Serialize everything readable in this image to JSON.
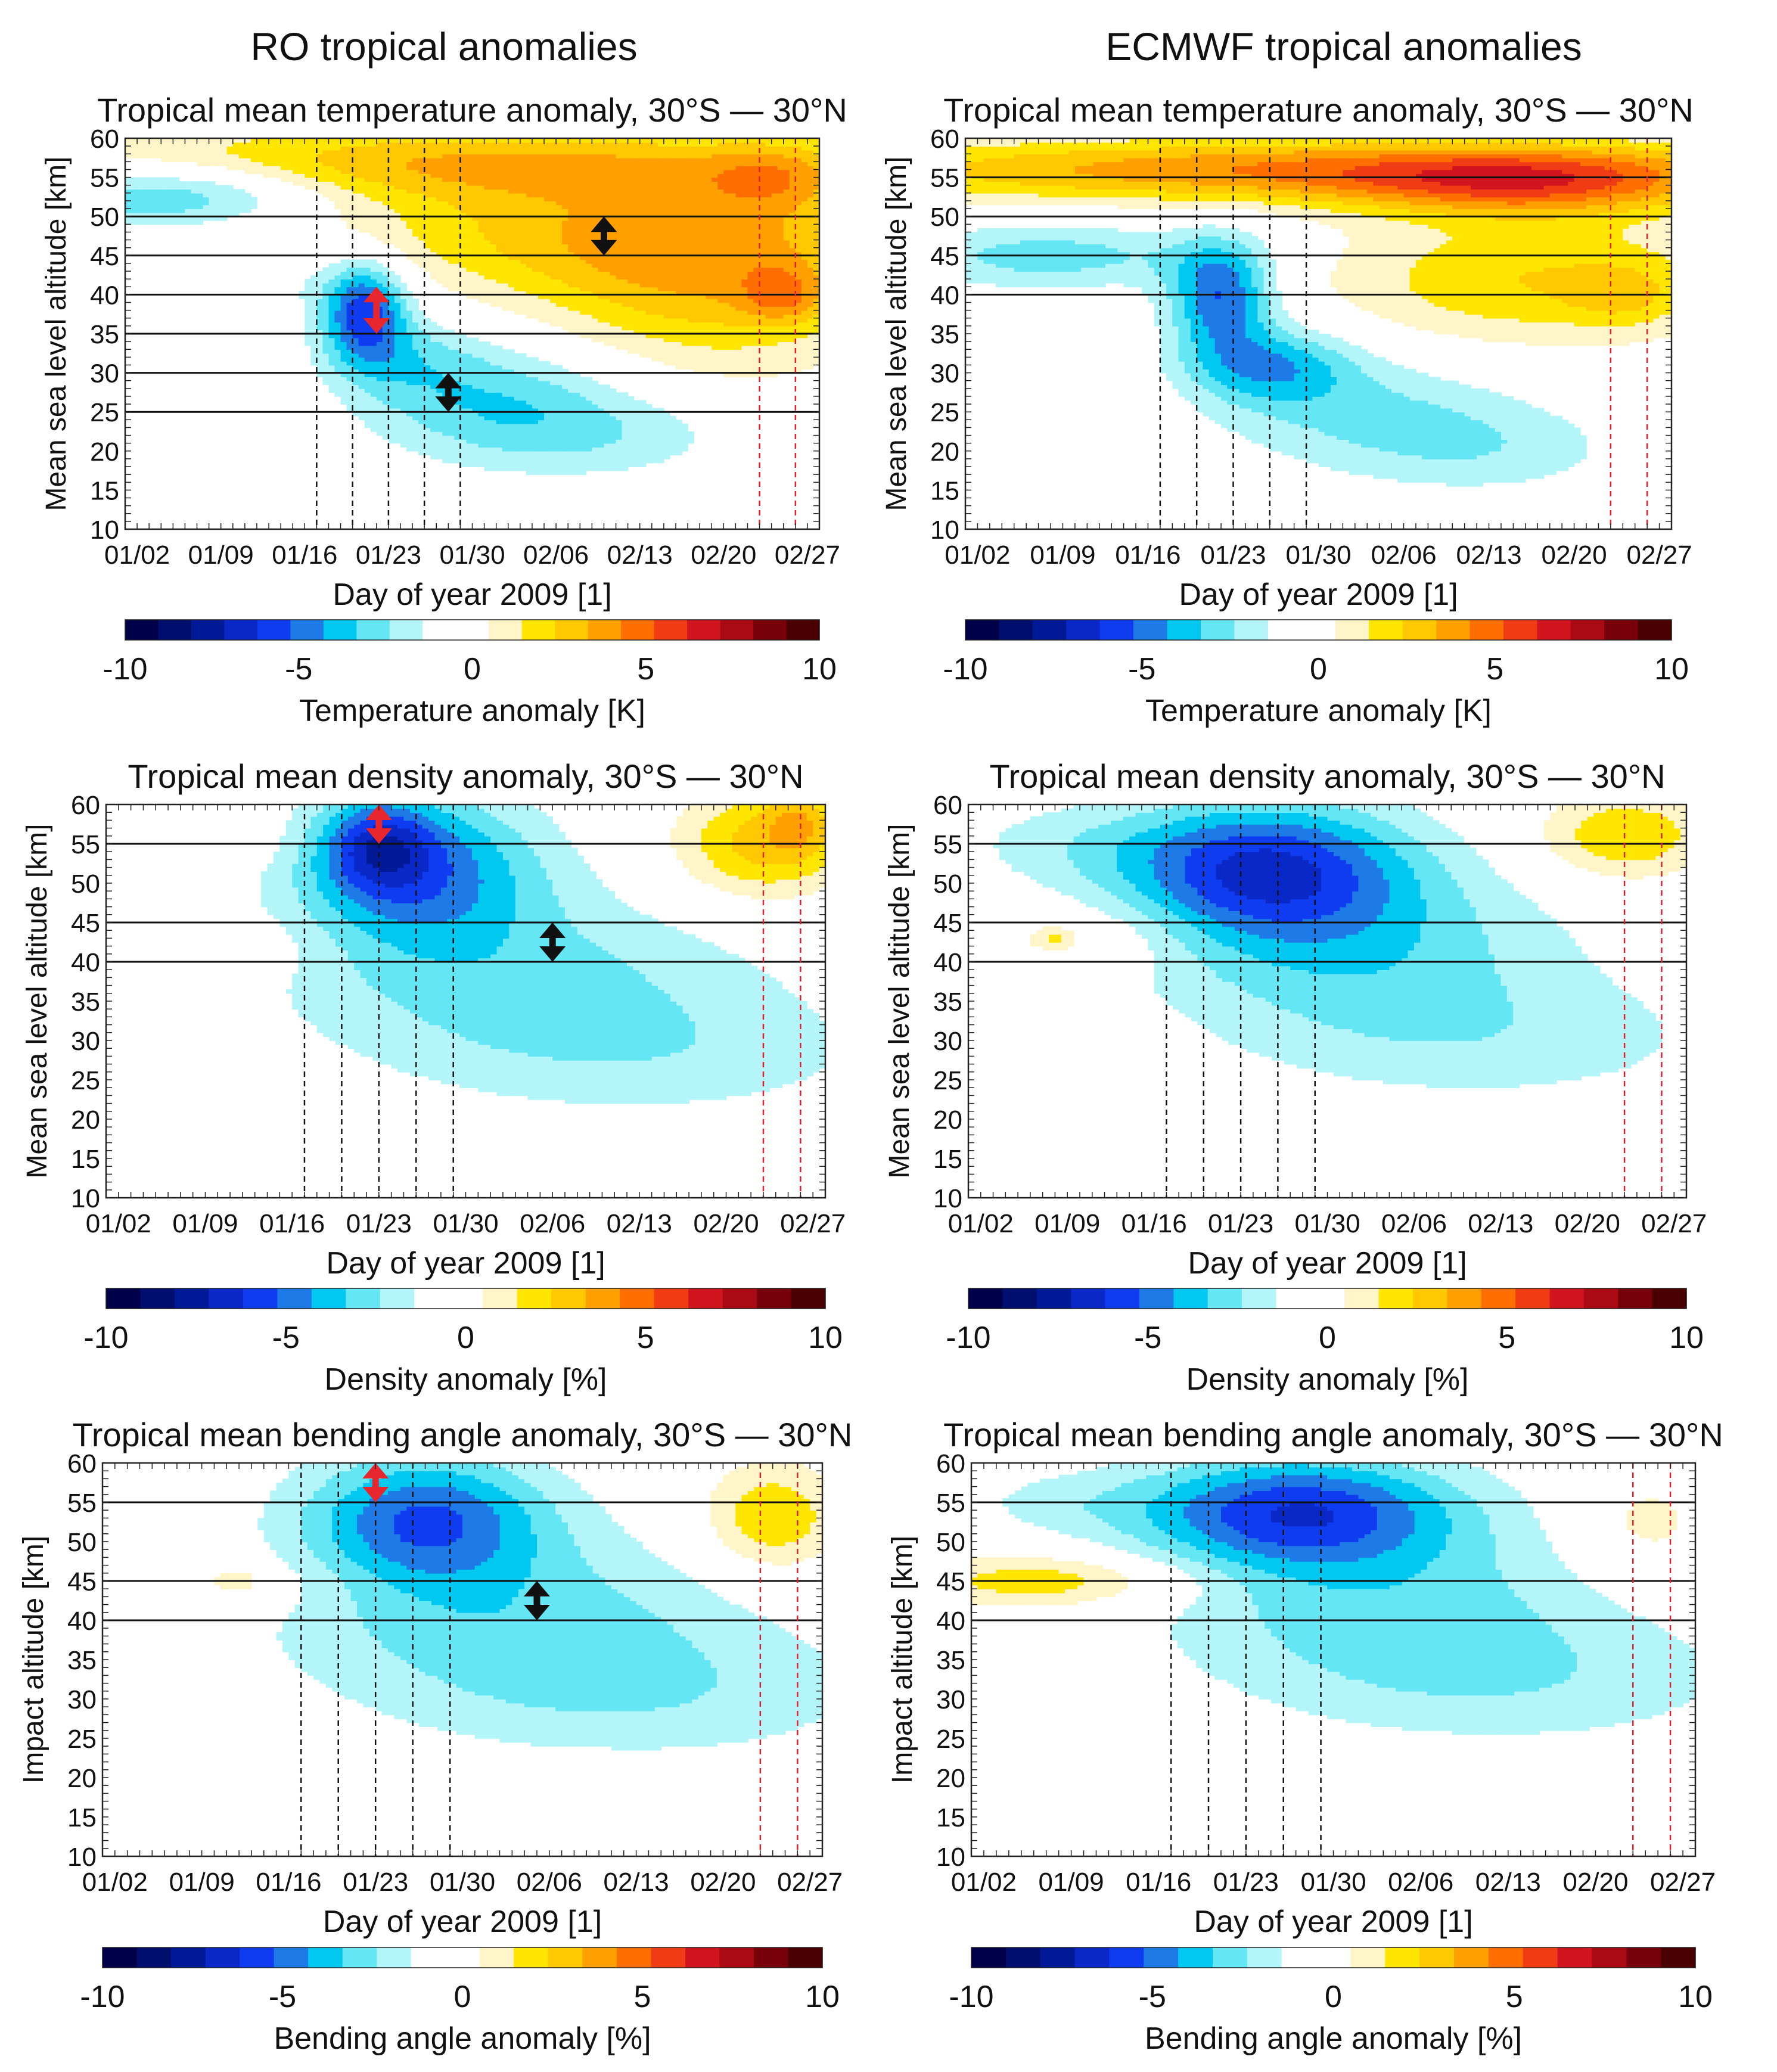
{
  "figure": {
    "column_titles": [
      "RO tropical anomalies",
      "ECMWF tropical anomalies"
    ]
  },
  "palette": [
    "#00004a",
    "#000e6e",
    "#001996",
    "#0a28c8",
    "#0f3cf0",
    "#1e7ae6",
    "#00c8f0",
    "#64e6f5",
    "#b4f5fa",
    "#ffffff",
    "#ffffff",
    "#fff5c8",
    "#ffe600",
    "#ffc800",
    "#ffa000",
    "#ff6e00",
    "#f03c14",
    "#d2141e",
    "#aa0a14",
    "#78000a",
    "#4a0000"
  ],
  "chart_data": [
    {
      "type": "heatmap",
      "id": "ro-temperature",
      "title": "Tropical mean temperature anomaly, 30°S — 30°N",
      "xlabel": "Day of year 2009 [1]",
      "ylabel": "Mean sea level altitude [km]",
      "xticks": [
        "01/02",
        "01/09",
        "01/16",
        "01/23",
        "01/30",
        "02/06",
        "02/13",
        "02/20",
        "02/27"
      ],
      "yticks": [
        10,
        15,
        20,
        25,
        30,
        35,
        40,
        45,
        50,
        55,
        60
      ],
      "xlim": [
        1,
        59
      ],
      "ylim": [
        10,
        60
      ],
      "colorbar": {
        "label": "Temperature anomaly [K]",
        "ticks": [
          -10,
          -5,
          0,
          5,
          10
        ],
        "range": [
          -10,
          10
        ]
      },
      "hlines_km": [
        25,
        30,
        35,
        40,
        45,
        50
      ],
      "vlines_black_day": [
        17,
        20,
        23,
        26,
        29
      ],
      "vlines_red_day": [
        54,
        57
      ],
      "arrows": [
        {
          "color": "red",
          "x": 22,
          "y1": 35,
          "y2": 41
        },
        {
          "color": "black",
          "x": 28,
          "y1": 25,
          "y2": 30
        },
        {
          "color": "black",
          "x": 41,
          "y1": 45,
          "y2": 50
        }
      ],
      "features": [
        {
          "x": 28,
          "y": 57,
          "sx": 26,
          "sy": 3.5,
          "v": 3.5
        },
        {
          "x": 42,
          "y": 48,
          "sx": 18,
          "sy": 6,
          "v": 3.2
        },
        {
          "x": 50,
          "y": 40,
          "sx": 10,
          "sy": 8,
          "v": 2.8
        },
        {
          "x": 55,
          "y": 55,
          "sx": 4,
          "sy": 3,
          "v": 2
        },
        {
          "x": 56,
          "y": 40,
          "sx": 2.5,
          "sy": 2.5,
          "v": 2.5
        },
        {
          "x": 5,
          "y": 53,
          "sx": 9,
          "sy": 3,
          "v": -3.8
        },
        {
          "x": 24,
          "y": 32,
          "sx": 5,
          "sy": 4,
          "v": -1.8
        },
        {
          "x": 21,
          "y": 38,
          "sx": 2.5,
          "sy": 4.5,
          "v": -5.5
        },
        {
          "x": 32,
          "y": 27,
          "sx": 8,
          "sy": 5,
          "v": -2.5
        },
        {
          "x": 40,
          "y": 22,
          "sx": 9,
          "sy": 4,
          "v": -1.6
        },
        {
          "x": 10,
          "y": 42,
          "sx": 9,
          "sy": 3,
          "v": -1.3
        },
        {
          "x": 6,
          "y": 28,
          "sx": 9,
          "sy": 4,
          "v": 0.8
        }
      ]
    },
    {
      "type": "heatmap",
      "id": "ecmwf-temperature",
      "title": "Tropical mean temperature anomaly, 30°S — 30°N",
      "xlabel": "Day of year 2009 [1]",
      "ylabel": "Mean sea level altitude [km]",
      "xticks": [
        "01/02",
        "01/09",
        "01/16",
        "01/23",
        "01/30",
        "02/06",
        "02/13",
        "02/20",
        "02/27"
      ],
      "yticks": [
        10,
        15,
        20,
        25,
        30,
        35,
        40,
        45,
        50,
        55,
        60
      ],
      "xlim": [
        1,
        59
      ],
      "ylim": [
        10,
        60
      ],
      "colorbar": {
        "label": "Temperature anomaly [K]",
        "ticks": [
          -10,
          -5,
          0,
          5,
          10
        ],
        "range": [
          -10,
          10
        ]
      },
      "hlines_km": [
        40,
        45,
        50,
        55
      ],
      "vlines_black_day": [
        17,
        20,
        23,
        26,
        29
      ],
      "vlines_red_day": [
        54,
        57
      ],
      "arrows": [],
      "features": [
        {
          "x": 30,
          "y": 56,
          "sx": 30,
          "sy": 3,
          "v": 5
        },
        {
          "x": 47,
          "y": 54,
          "sx": 10,
          "sy": 3,
          "v": 3.5
        },
        {
          "x": 48,
          "y": 42,
          "sx": 12,
          "sy": 6,
          "v": 3
        },
        {
          "x": 55,
          "y": 40,
          "sx": 3,
          "sy": 2.5,
          "v": 1.5
        },
        {
          "x": 8,
          "y": 45,
          "sx": 9,
          "sy": 3,
          "v": -2.5
        },
        {
          "x": 22,
          "y": 40,
          "sx": 3,
          "sy": 5,
          "v": -5
        },
        {
          "x": 26,
          "y": 31,
          "sx": 5,
          "sy": 3.5,
          "v": -3.5
        },
        {
          "x": 34,
          "y": 25,
          "sx": 9,
          "sy": 5,
          "v": -2
        },
        {
          "x": 44,
          "y": 20,
          "sx": 8,
          "sy": 4,
          "v": -1.4
        },
        {
          "x": 7,
          "y": 26,
          "sx": 7,
          "sy": 3,
          "v": 0.9
        }
      ]
    },
    {
      "type": "heatmap",
      "id": "ro-density",
      "title": "Tropical mean density anomaly, 30°S — 30°N",
      "xlabel": "Day of year 2009 [1]",
      "ylabel": "Mean sea level altitude [km]",
      "xticks": [
        "01/02",
        "01/09",
        "01/16",
        "01/23",
        "01/30",
        "02/06",
        "02/13",
        "02/20",
        "02/27"
      ],
      "yticks": [
        10,
        15,
        20,
        25,
        30,
        35,
        40,
        45,
        50,
        55,
        60
      ],
      "xlim": [
        1,
        59
      ],
      "ylim": [
        10,
        60
      ],
      "colorbar": {
        "label": "Density anomaly [%]",
        "ticks": [
          -10,
          -5,
          0,
          5,
          10
        ],
        "range": [
          -10,
          10
        ]
      },
      "hlines_km": [
        40,
        45,
        55
      ],
      "vlines_black_day": [
        17,
        20,
        23,
        26,
        29
      ],
      "vlines_red_day": [
        54,
        57
      ],
      "arrows": [
        {
          "color": "red",
          "x": 23,
          "y1": 55,
          "y2": 60
        },
        {
          "color": "black",
          "x": 37,
          "y1": 40,
          "y2": 45
        }
      ],
      "features": [
        {
          "x": 26,
          "y": 52,
          "sx": 7,
          "sy": 7,
          "v": -4.5
        },
        {
          "x": 23,
          "y": 55,
          "sx": 3,
          "sy": 4,
          "v": -3.5
        },
        {
          "x": 34,
          "y": 38,
          "sx": 14,
          "sy": 8,
          "v": -2.2
        },
        {
          "x": 46,
          "y": 28,
          "sx": 14,
          "sy": 6,
          "v": -1.3
        },
        {
          "x": 54,
          "y": 55,
          "sx": 5,
          "sy": 5,
          "v": 3.5
        },
        {
          "x": 57,
          "y": 58,
          "sx": 2,
          "sy": 3,
          "v": 2
        },
        {
          "x": 8,
          "y": 42,
          "sx": 8,
          "sy": 3,
          "v": 0.9
        },
        {
          "x": 12,
          "y": 56,
          "sx": 3,
          "sy": 3,
          "v": 0.7
        }
      ]
    },
    {
      "type": "heatmap",
      "id": "ecmwf-density",
      "title": "Tropical mean density anomaly, 30°S — 30°N",
      "xlabel": "Day of year 2009 [1]",
      "ylabel": "Mean sea level altitude [km]",
      "xticks": [
        "01/02",
        "01/09",
        "01/16",
        "01/23",
        "01/30",
        "02/06",
        "02/13",
        "02/20",
        "02/27"
      ],
      "yticks": [
        10,
        15,
        20,
        25,
        30,
        35,
        40,
        45,
        50,
        55,
        60
      ],
      "xlim": [
        1,
        59
      ],
      "ylim": [
        10,
        60
      ],
      "colorbar": {
        "label": "Density anomaly [%]",
        "ticks": [
          -10,
          -5,
          0,
          5,
          10
        ],
        "range": [
          -10,
          10
        ]
      },
      "hlines_km": [
        40,
        45,
        55
      ],
      "vlines_black_day": [
        17,
        20,
        23,
        26,
        29
      ],
      "vlines_red_day": [
        54,
        57
      ],
      "arrows": [],
      "features": [
        {
          "x": 25,
          "y": 52,
          "sx": 8,
          "sy": 6,
          "v": -5.5
        },
        {
          "x": 32,
          "y": 42,
          "sx": 12,
          "sy": 8,
          "v": -2.6
        },
        {
          "x": 44,
          "y": 30,
          "sx": 14,
          "sy": 6,
          "v": -1.4
        },
        {
          "x": 10,
          "y": 55,
          "sx": 8,
          "sy": 4,
          "v": -1.2
        },
        {
          "x": 54,
          "y": 56,
          "sx": 5,
          "sy": 4,
          "v": 3
        },
        {
          "x": 10,
          "y": 43,
          "sx": 6,
          "sy": 3,
          "v": 1.2
        },
        {
          "x": 8,
          "y": 43,
          "sx": 1.2,
          "sy": 1,
          "v": 1.6
        }
      ]
    },
    {
      "type": "heatmap",
      "id": "ro-bending",
      "title": "Tropical mean bending angle anomaly, 30°S — 30°N",
      "xlabel": "Day of year 2009 [1]",
      "ylabel": "Impact altitude [km]",
      "xticks": [
        "01/02",
        "01/09",
        "01/16",
        "01/23",
        "01/30",
        "02/06",
        "02/13",
        "02/20",
        "02/27"
      ],
      "yticks": [
        10,
        15,
        20,
        25,
        30,
        35,
        40,
        45,
        50,
        55,
        60
      ],
      "xlim": [
        1,
        59
      ],
      "ylim": [
        10,
        60
      ],
      "colorbar": {
        "label": "Bending angle anomaly [%]",
        "ticks": [
          -10,
          -5,
          0,
          5,
          10
        ],
        "range": [
          -10,
          10
        ]
      },
      "hlines_km": [
        40,
        45,
        55
      ],
      "vlines_black_day": [
        17,
        20,
        23,
        26,
        29
      ],
      "vlines_red_day": [
        54,
        57
      ],
      "arrows": [
        {
          "color": "red",
          "x": 23,
          "y1": 55,
          "y2": 60
        },
        {
          "color": "black",
          "x": 36,
          "y1": 40,
          "y2": 45
        }
      ],
      "features": [
        {
          "x": 27,
          "y": 53,
          "sx": 7,
          "sy": 6,
          "v": -4.8
        },
        {
          "x": 34,
          "y": 40,
          "sx": 14,
          "sy": 8,
          "v": -2.4
        },
        {
          "x": 46,
          "y": 30,
          "sx": 14,
          "sy": 6,
          "v": -1.4
        },
        {
          "x": 8,
          "y": 22,
          "sx": 4,
          "sy": 3,
          "v": -0.9
        },
        {
          "x": 55,
          "y": 53,
          "sx": 4,
          "sy": 5,
          "v": 3
        },
        {
          "x": 10,
          "y": 45,
          "sx": 9,
          "sy": 3,
          "v": 0.9
        },
        {
          "x": 12,
          "y": 45,
          "sx": 1.5,
          "sy": 1.2,
          "v": 1.5
        },
        {
          "x": 40,
          "y": 19,
          "sx": 6,
          "sy": 2,
          "v": 0.7
        }
      ]
    },
    {
      "type": "heatmap",
      "id": "ecmwf-bending",
      "title": "Tropical mean bending angle anomaly, 30°S — 30°N",
      "xlabel": "Day of year 2009 [1]",
      "ylabel": "Impact altitude [km]",
      "xticks": [
        "01/02",
        "01/09",
        "01/16",
        "01/23",
        "01/30",
        "02/06",
        "02/13",
        "02/20",
        "02/27"
      ],
      "yticks": [
        10,
        15,
        20,
        25,
        30,
        35,
        40,
        45,
        50,
        55,
        60
      ],
      "xlim": [
        1,
        59
      ],
      "ylim": [
        10,
        60
      ],
      "colorbar": {
        "label": "Bending angle anomaly [%]",
        "ticks": [
          -10,
          -5,
          0,
          5,
          10
        ],
        "range": [
          -10,
          10
        ]
      },
      "hlines_km": [
        40,
        45,
        55
      ],
      "vlines_black_day": [
        17,
        20,
        23,
        26,
        29
      ],
      "vlines_red_day": [
        54,
        57
      ],
      "arrows": [],
      "features": [
        {
          "x": 27,
          "y": 54,
          "sx": 9,
          "sy": 5,
          "v": -5.5
        },
        {
          "x": 34,
          "y": 42,
          "sx": 13,
          "sy": 8,
          "v": -2.4
        },
        {
          "x": 46,
          "y": 32,
          "sx": 14,
          "sy": 6,
          "v": -1.4
        },
        {
          "x": 8,
          "y": 55,
          "sx": 6,
          "sy": 3,
          "v": -1.0
        },
        {
          "x": 6,
          "y": 22,
          "sx": 4,
          "sy": 3,
          "v": -0.9
        },
        {
          "x": 7,
          "y": 45,
          "sx": 8,
          "sy": 2.5,
          "v": 2.8
        },
        {
          "x": 55,
          "y": 52,
          "sx": 4,
          "sy": 5,
          "v": 1.5
        },
        {
          "x": 40,
          "y": 20,
          "sx": 5,
          "sy": 2,
          "v": 0.7
        }
      ]
    }
  ]
}
